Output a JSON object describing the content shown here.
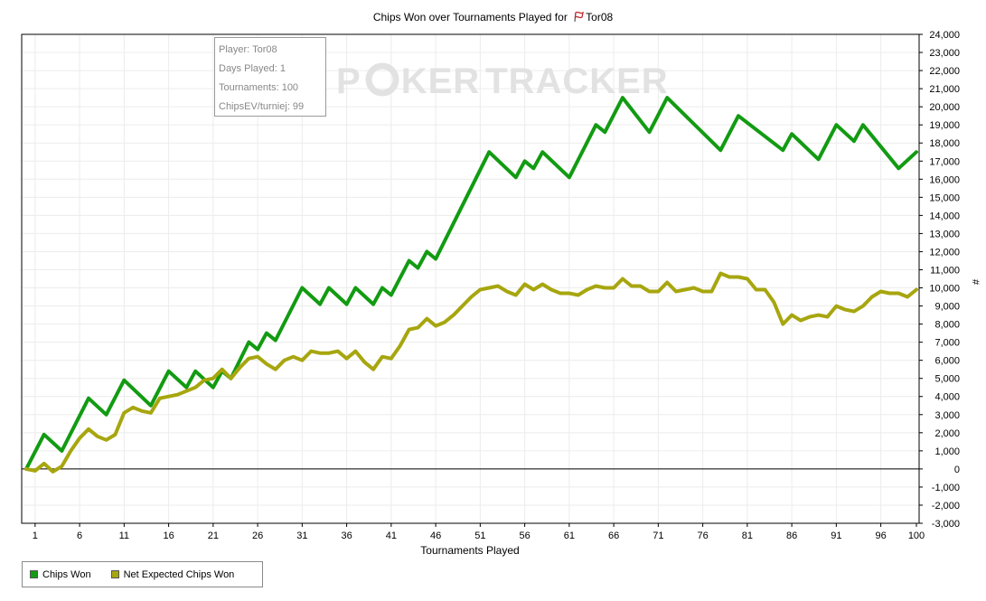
{
  "window": {
    "title_prefix": "Chips Won over Tournaments Played for",
    "player_icon": "player-flag-icon",
    "player_name": "Tor08"
  },
  "watermark": {
    "part1": "P",
    "part2": "KER",
    "part3": "TRACKER"
  },
  "info_box": {
    "player": "Player: Tor08",
    "days_played": "Days Played: 1",
    "tournaments": "Tournaments: 100",
    "chips_ev": "ChipsEV/turniej: 99"
  },
  "legend": [
    {
      "label": "Chips Won",
      "color": "#129b12"
    },
    {
      "label": "Net Expected Chips Won",
      "color": "#a7a60f"
    }
  ],
  "chart_data": {
    "type": "line",
    "title": "Chips Won over Tournaments Played for Tor08",
    "xlabel": "Tournaments Played",
    "ylabel": "#",
    "xlim": [
      0,
      100
    ],
    "ylim": [
      -3000,
      24000
    ],
    "x_ticks": [
      1,
      6,
      11,
      16,
      21,
      26,
      31,
      36,
      41,
      46,
      51,
      56,
      61,
      66,
      71,
      76,
      81,
      86,
      91,
      96,
      100
    ],
    "y_ticks": [
      -3000,
      -2000,
      -1000,
      0,
      1000,
      2000,
      3000,
      4000,
      5000,
      6000,
      7000,
      8000,
      9000,
      10000,
      11000,
      12000,
      13000,
      14000,
      15000,
      16000,
      17000,
      18000,
      19000,
      20000,
      21000,
      22000,
      23000,
      24000
    ],
    "y_tick_labels": [
      "-3,000",
      "-2,000",
      "-1,000",
      "0",
      "1,000",
      "2,000",
      "3,000",
      "4,000",
      "5,000",
      "6,000",
      "7,000",
      "8,000",
      "9,000",
      "10,000",
      "11,000",
      "12,000",
      "13,000",
      "14,000",
      "15,000",
      "16,000",
      "17,000",
      "18,000",
      "19,000",
      "20,000",
      "21,000",
      "22,000",
      "23,000",
      "24,000"
    ],
    "grid": true,
    "legend_position": "bottom-left",
    "series": [
      {
        "name": "Chips Won",
        "color": "#129b12",
        "x": [
          0,
          2,
          4,
          7,
          9,
          11,
          14,
          16,
          18,
          19,
          21,
          22,
          23,
          25,
          26,
          27,
          28,
          31,
          33,
          34,
          36,
          37,
          39,
          40,
          41,
          43,
          44,
          45,
          46,
          52,
          55,
          56,
          57,
          58,
          61,
          64,
          65,
          67,
          70,
          72,
          78,
          80,
          85,
          86,
          89,
          91,
          93,
          94,
          98,
          100
        ],
        "values": [
          0,
          1900,
          1000,
          3900,
          3000,
          4900,
          3500,
          5400,
          4500,
          5400,
          4500,
          5400,
          5000,
          7000,
          6600,
          7500,
          7100,
          10000,
          9100,
          10000,
          9100,
          10000,
          9100,
          10000,
          9600,
          11500,
          11100,
          12000,
          11600,
          17500,
          16100,
          17000,
          16600,
          17500,
          16100,
          19000,
          18600,
          20500,
          18600,
          20500,
          17600,
          19500,
          17600,
          18500,
          17100,
          19000,
          18100,
          19000,
          16600,
          17500
        ]
      },
      {
        "name": "Net Expected Chips Won",
        "color": "#a7a60f",
        "x": [
          0,
          1,
          2,
          3,
          4,
          5,
          6,
          7,
          8,
          9,
          10,
          11,
          12,
          13,
          14,
          15,
          16,
          17,
          18,
          19,
          20,
          21,
          22,
          23,
          24,
          25,
          26,
          27,
          28,
          29,
          30,
          31,
          32,
          33,
          34,
          35,
          36,
          37,
          38,
          39,
          40,
          41,
          42,
          43,
          44,
          45,
          46,
          47,
          48,
          49,
          50,
          51,
          52,
          53,
          54,
          55,
          56,
          57,
          58,
          59,
          60,
          61,
          62,
          63,
          64,
          65,
          66,
          67,
          68,
          69,
          70,
          71,
          72,
          73,
          74,
          75,
          76,
          77,
          78,
          79,
          80,
          81,
          82,
          83,
          84,
          85,
          86,
          87,
          88,
          89,
          90,
          91,
          92,
          93,
          94,
          95,
          96,
          97,
          98,
          99,
          100
        ],
        "values": [
          0,
          -100,
          300,
          -150,
          150,
          1000,
          1700,
          2200,
          1800,
          1600,
          1900,
          3100,
          3400,
          3200,
          3100,
          3900,
          4000,
          4100,
          4300,
          4500,
          4900,
          5000,
          5500,
          5000,
          5600,
          6100,
          6200,
          5800,
          5500,
          6000,
          6200,
          6000,
          6500,
          6400,
          6400,
          6500,
          6100,
          6500,
          5900,
          5500,
          6200,
          6100,
          6800,
          7700,
          7800,
          8300,
          7900,
          8100,
          8500,
          9000,
          9500,
          9900,
          10000,
          10100,
          9800,
          9600,
          10200,
          9900,
          10200,
          9900,
          9700,
          9700,
          9600,
          9900,
          10100,
          10000,
          10000,
          10500,
          10100,
          10100,
          9800,
          9800,
          10300,
          9800,
          9900,
          10000,
          9800,
          9800,
          10800,
          10600,
          10600,
          10500,
          9900,
          9900,
          9200,
          8000,
          8500,
          8200,
          8400,
          8500,
          8400,
          9000,
          8800,
          8700,
          9000,
          9500,
          9800,
          9700,
          9700,
          9500,
          9900
        ]
      }
    ]
  }
}
